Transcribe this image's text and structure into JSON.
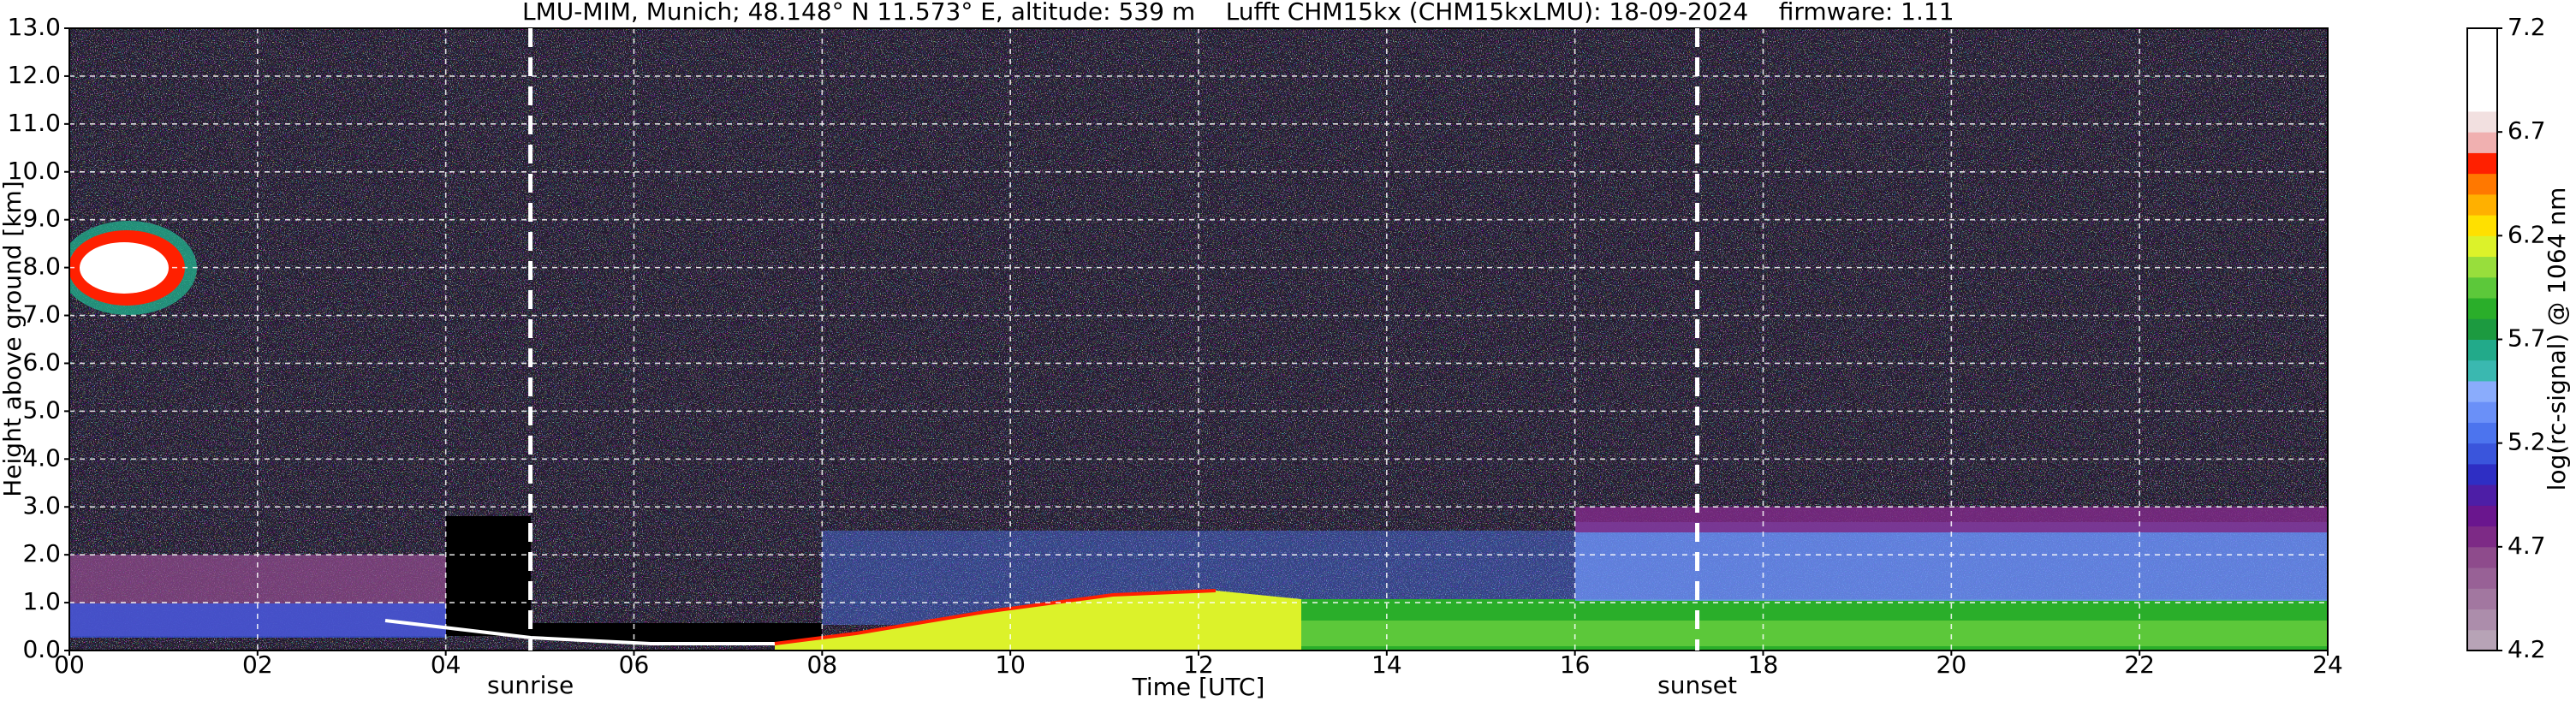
{
  "chart_data": {
    "type": "heatmap",
    "title": "LMU-MIM, Munich; 48.148° N 11.573° E, altitude: 539 m    Lufft CHM15kx (CHM15kxLMU): 18-09-2024    firmware: 1.11",
    "x_label": "Time [UTC]",
    "y_label": "Height above ground [km]",
    "xlim": [
      0,
      24
    ],
    "xticks": [
      {
        "value": 0,
        "label": "00"
      },
      {
        "value": 2,
        "label": "02"
      },
      {
        "value": 4,
        "label": "04"
      },
      {
        "value": 6,
        "label": "06"
      },
      {
        "value": 8,
        "label": "08"
      },
      10,
      12,
      14,
      16,
      18,
      20,
      22,
      24
    ],
    "ylim": [
      0,
      13
    ],
    "yticks": [
      {
        "value": 0,
        "label": "0.0"
      },
      {
        "value": 1,
        "label": "1.0"
      },
      {
        "value": 2,
        "label": "2.0"
      },
      {
        "value": 3,
        "label": "3.0"
      },
      {
        "value": 4,
        "label": "4.0"
      },
      {
        "value": 5,
        "label": "5.0"
      },
      {
        "value": 6,
        "label": "6.0"
      },
      {
        "value": 7,
        "label": "7.0"
      },
      {
        "value": 8,
        "label": "8.0"
      },
      {
        "value": 9,
        "label": "9.0"
      },
      {
        "value": 10,
        "label": "10.0"
      },
      {
        "value": 11,
        "label": "11.0"
      },
      {
        "value": 12,
        "label": "12.0"
      },
      {
        "value": 13,
        "label": "13.0"
      }
    ],
    "grid": true,
    "annotations": [
      {
        "x": 4.9,
        "text": "sunrise"
      },
      {
        "x": 17.3,
        "text": "sunset"
      }
    ],
    "colorbar_label": "log(rc-signal) @ 1064 nm",
    "clim": [
      4.2,
      7.2
    ],
    "cticks": [
      4.2,
      4.7,
      5.2,
      5.7,
      6.2,
      6.7,
      7.2
    ],
    "colormap": [
      "#b7a3b6",
      "#ac8dab",
      "#a277a0",
      "#986196",
      "#8e4b8c",
      "#7d2a86",
      "#6a168e",
      "#4d1ea6",
      "#2e2ec4",
      "#3a55dc",
      "#4c74ee",
      "#6a90f8",
      "#8aacfc",
      "#3ab8b0",
      "#22aa8a",
      "#1c9a40",
      "#2aae2a",
      "#5cc83a",
      "#98de3c",
      "#dcf22a",
      "#ffe000",
      "#ffb000",
      "#ff7800",
      "#ff2000",
      "#f0b0b0",
      "#f2e0e0",
      "#ffffff",
      "#ffffff",
      "#ffffff",
      "#ffffff"
    ]
  }
}
